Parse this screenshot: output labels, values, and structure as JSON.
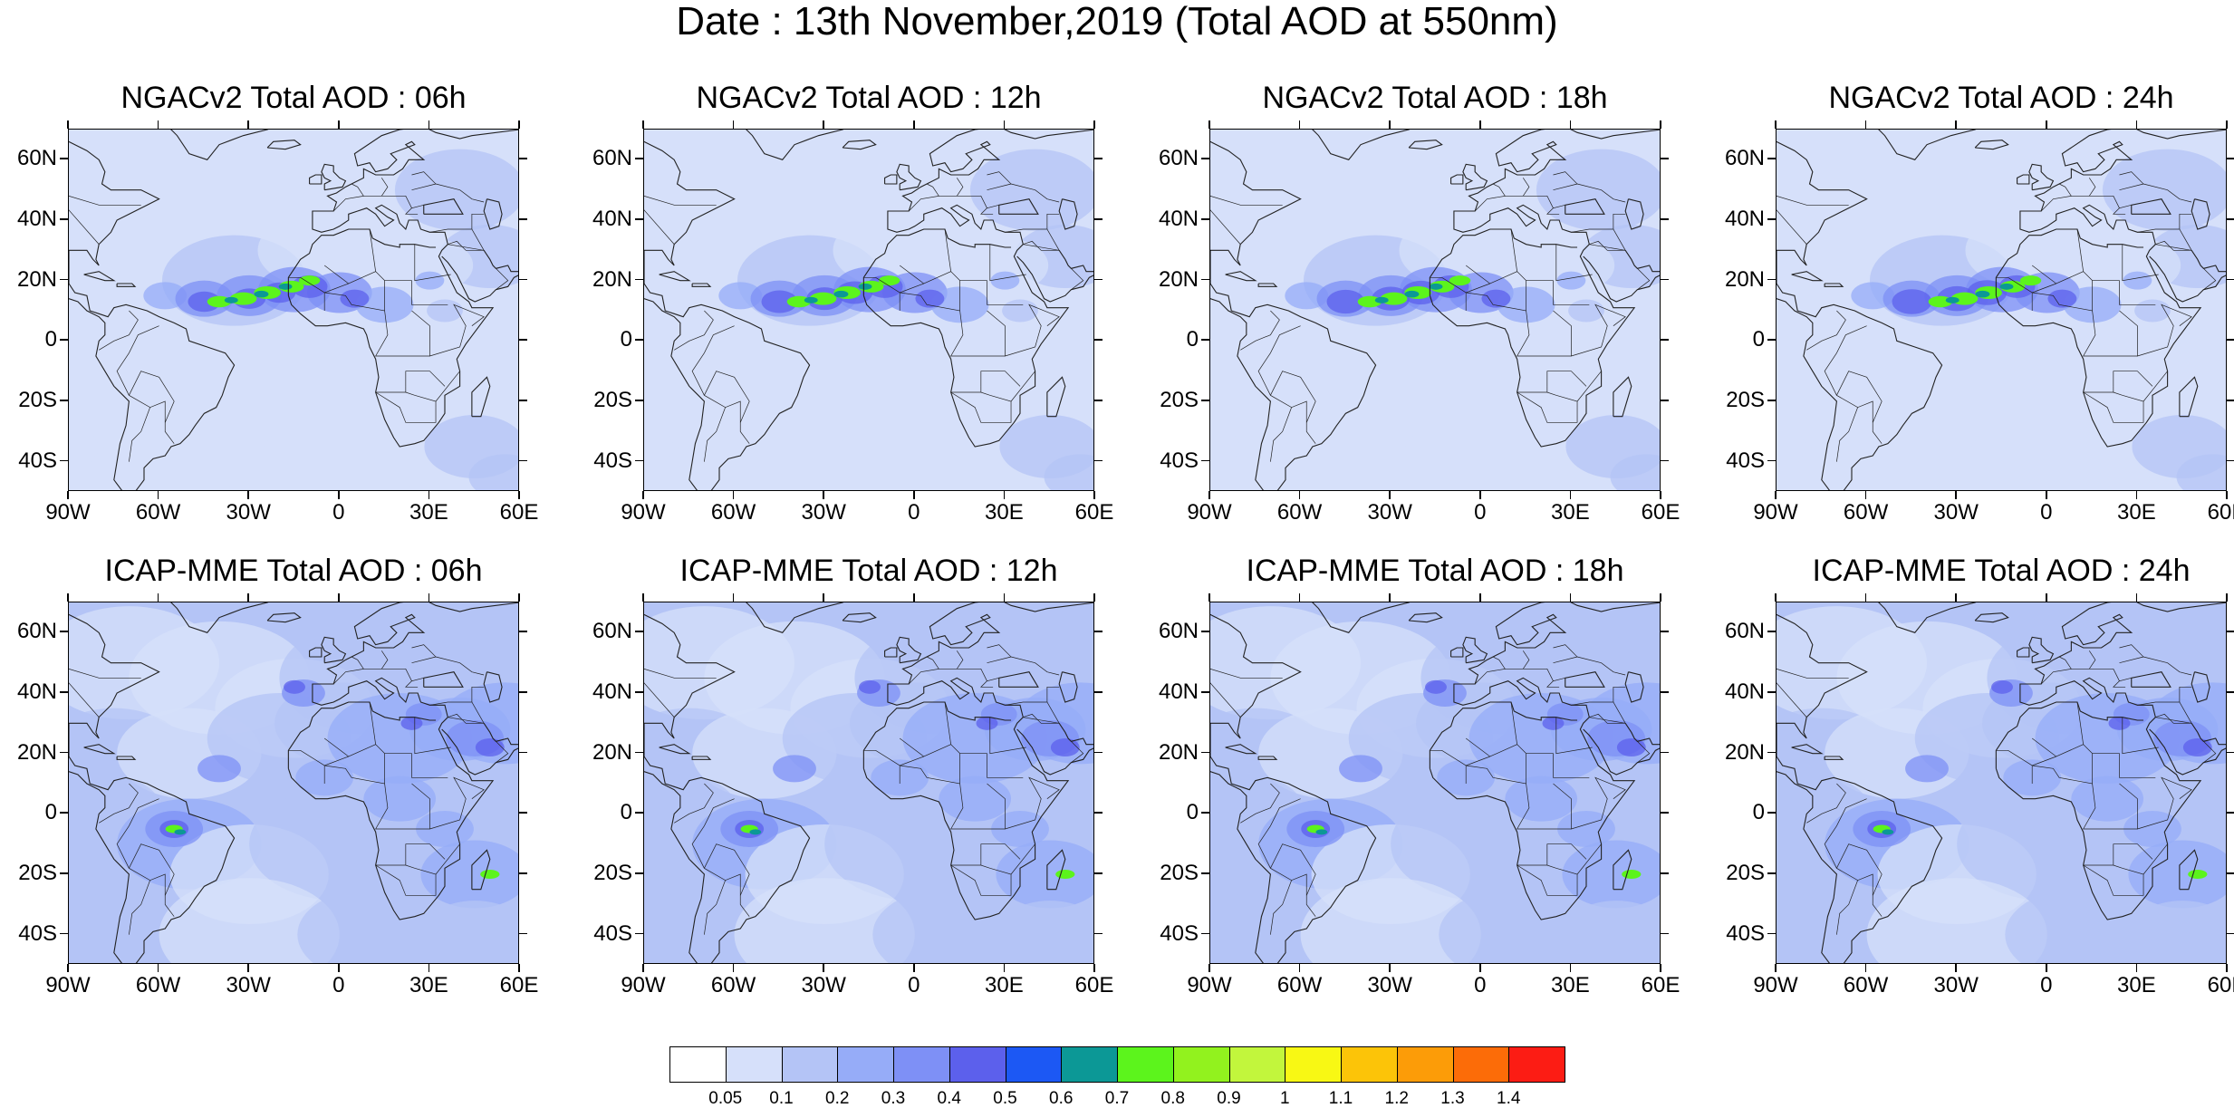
{
  "title": "Date : 13th November,2019 (Total AOD at 550nm)",
  "panels": [
    {
      "title": "NGACv2 Total AOD : 06h",
      "model": "NGACv2",
      "hour": "06h"
    },
    {
      "title": "NGACv2 Total AOD : 12h",
      "model": "NGACv2",
      "hour": "12h"
    },
    {
      "title": "NGACv2 Total AOD : 18h",
      "model": "NGACv2",
      "hour": "18h"
    },
    {
      "title": "NGACv2 Total AOD : 24h",
      "model": "NGACv2",
      "hour": "24h"
    },
    {
      "title": "ICAP-MME Total AOD : 06h",
      "model": "ICAP-MME",
      "hour": "06h"
    },
    {
      "title": "ICAP-MME Total AOD : 12h",
      "model": "ICAP-MME",
      "hour": "12h"
    },
    {
      "title": "ICAP-MME Total AOD : 18h",
      "model": "ICAP-MME",
      "hour": "18h"
    },
    {
      "title": "ICAP-MME Total AOD : 24h",
      "model": "ICAP-MME",
      "hour": "24h"
    }
  ],
  "axes": {
    "lat_labels": [
      "60N",
      "40N",
      "20N",
      "0",
      "20S",
      "40S"
    ],
    "lat_values": [
      60,
      40,
      20,
      0,
      -20,
      -40
    ],
    "lon_labels": [
      "90W",
      "60W",
      "30W",
      "0",
      "30E",
      "60E"
    ],
    "lon_values": [
      -90,
      -60,
      -30,
      0,
      30,
      60
    ],
    "lat_range": [
      -50,
      70
    ],
    "lon_range": [
      -90,
      60
    ]
  },
  "colorbar": {
    "colors": [
      "#ffffff",
      "#d6e0fa",
      "#b4c4f6",
      "#96acf8",
      "#7e90f6",
      "#5c60ec",
      "#1c58f4",
      "#0c9896",
      "#5cf41c",
      "#92f21e",
      "#c2f63c",
      "#f8f814",
      "#fcc408",
      "#fc9c08",
      "#fc6c08",
      "#fc1c14"
    ],
    "labels": [
      "0.05",
      "0.1",
      "0.2",
      "0.3",
      "0.4",
      "0.5",
      "0.6",
      "0.7",
      "0.8",
      "0.9",
      "1",
      "1.1",
      "1.2",
      "1.3",
      "1.4"
    ]
  }
}
